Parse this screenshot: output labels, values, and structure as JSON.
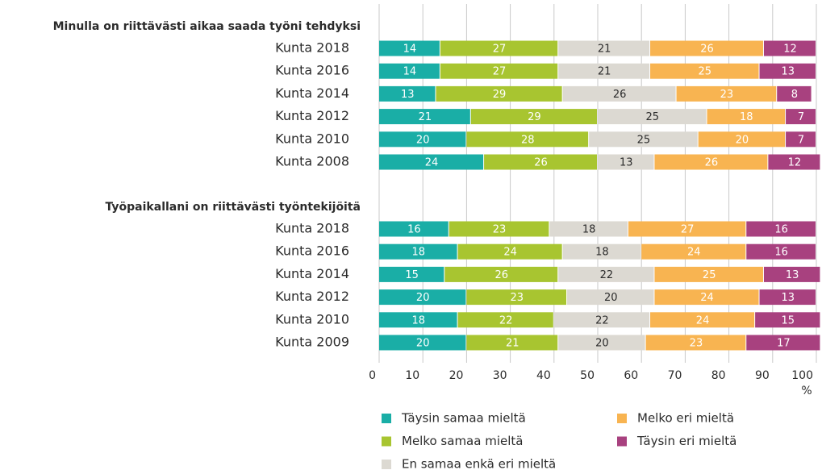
{
  "chart_data": {
    "type": "bar",
    "orientation": "horizontal",
    "stacked": true,
    "xlabel": "%",
    "xlim": [
      0,
      100
    ],
    "xticks": [
      0,
      10,
      20,
      30,
      40,
      50,
      60,
      70,
      80,
      90,
      100
    ],
    "grid": true,
    "groups": [
      {
        "title": "Minulla on riittävästi aikaa saada työni tehdyksi",
        "categories": [
          "Kunta 2018",
          "Kunta 2016",
          "Kunta 2014",
          "Kunta 2012",
          "Kunta 2010",
          "Kunta 2008"
        ]
      },
      {
        "title": "Työpaikallani on riittävästi työntekijöitä",
        "categories": [
          "Kunta 2018",
          "Kunta 2016",
          "Kunta 2014",
          "Kunta 2012",
          "Kunta 2010",
          "Kunta 2009"
        ]
      }
    ],
    "series": [
      {
        "name": "Täysin samaa mieltä",
        "color": "#1aaea6",
        "label_color": "#ffffff",
        "values": [
          14,
          14,
          13,
          21,
          20,
          24,
          16,
          18,
          15,
          20,
          18,
          20
        ]
      },
      {
        "name": "Melko samaa mieltä",
        "color": "#a8c530",
        "label_color": "#ffffff",
        "values": [
          27,
          27,
          29,
          29,
          28,
          26,
          23,
          24,
          26,
          23,
          22,
          21
        ]
      },
      {
        "name": "En samaa enkä eri mieltä",
        "color": "#dcd9d2",
        "label_color": "#2b2b2b",
        "values": [
          21,
          21,
          26,
          25,
          25,
          13,
          18,
          18,
          22,
          20,
          22,
          20
        ]
      },
      {
        "name": "Melko eri mieltä",
        "color": "#f8b451",
        "label_color": "#ffffff",
        "values": [
          26,
          25,
          23,
          18,
          20,
          26,
          27,
          24,
          25,
          24,
          24,
          23
        ]
      },
      {
        "name": "Täysin eri mieltä",
        "color": "#a8417f",
        "label_color": "#ffffff",
        "values": [
          12,
          13,
          8,
          7,
          7,
          12,
          16,
          16,
          13,
          13,
          15,
          17
        ]
      }
    ],
    "legend": "bottom"
  }
}
